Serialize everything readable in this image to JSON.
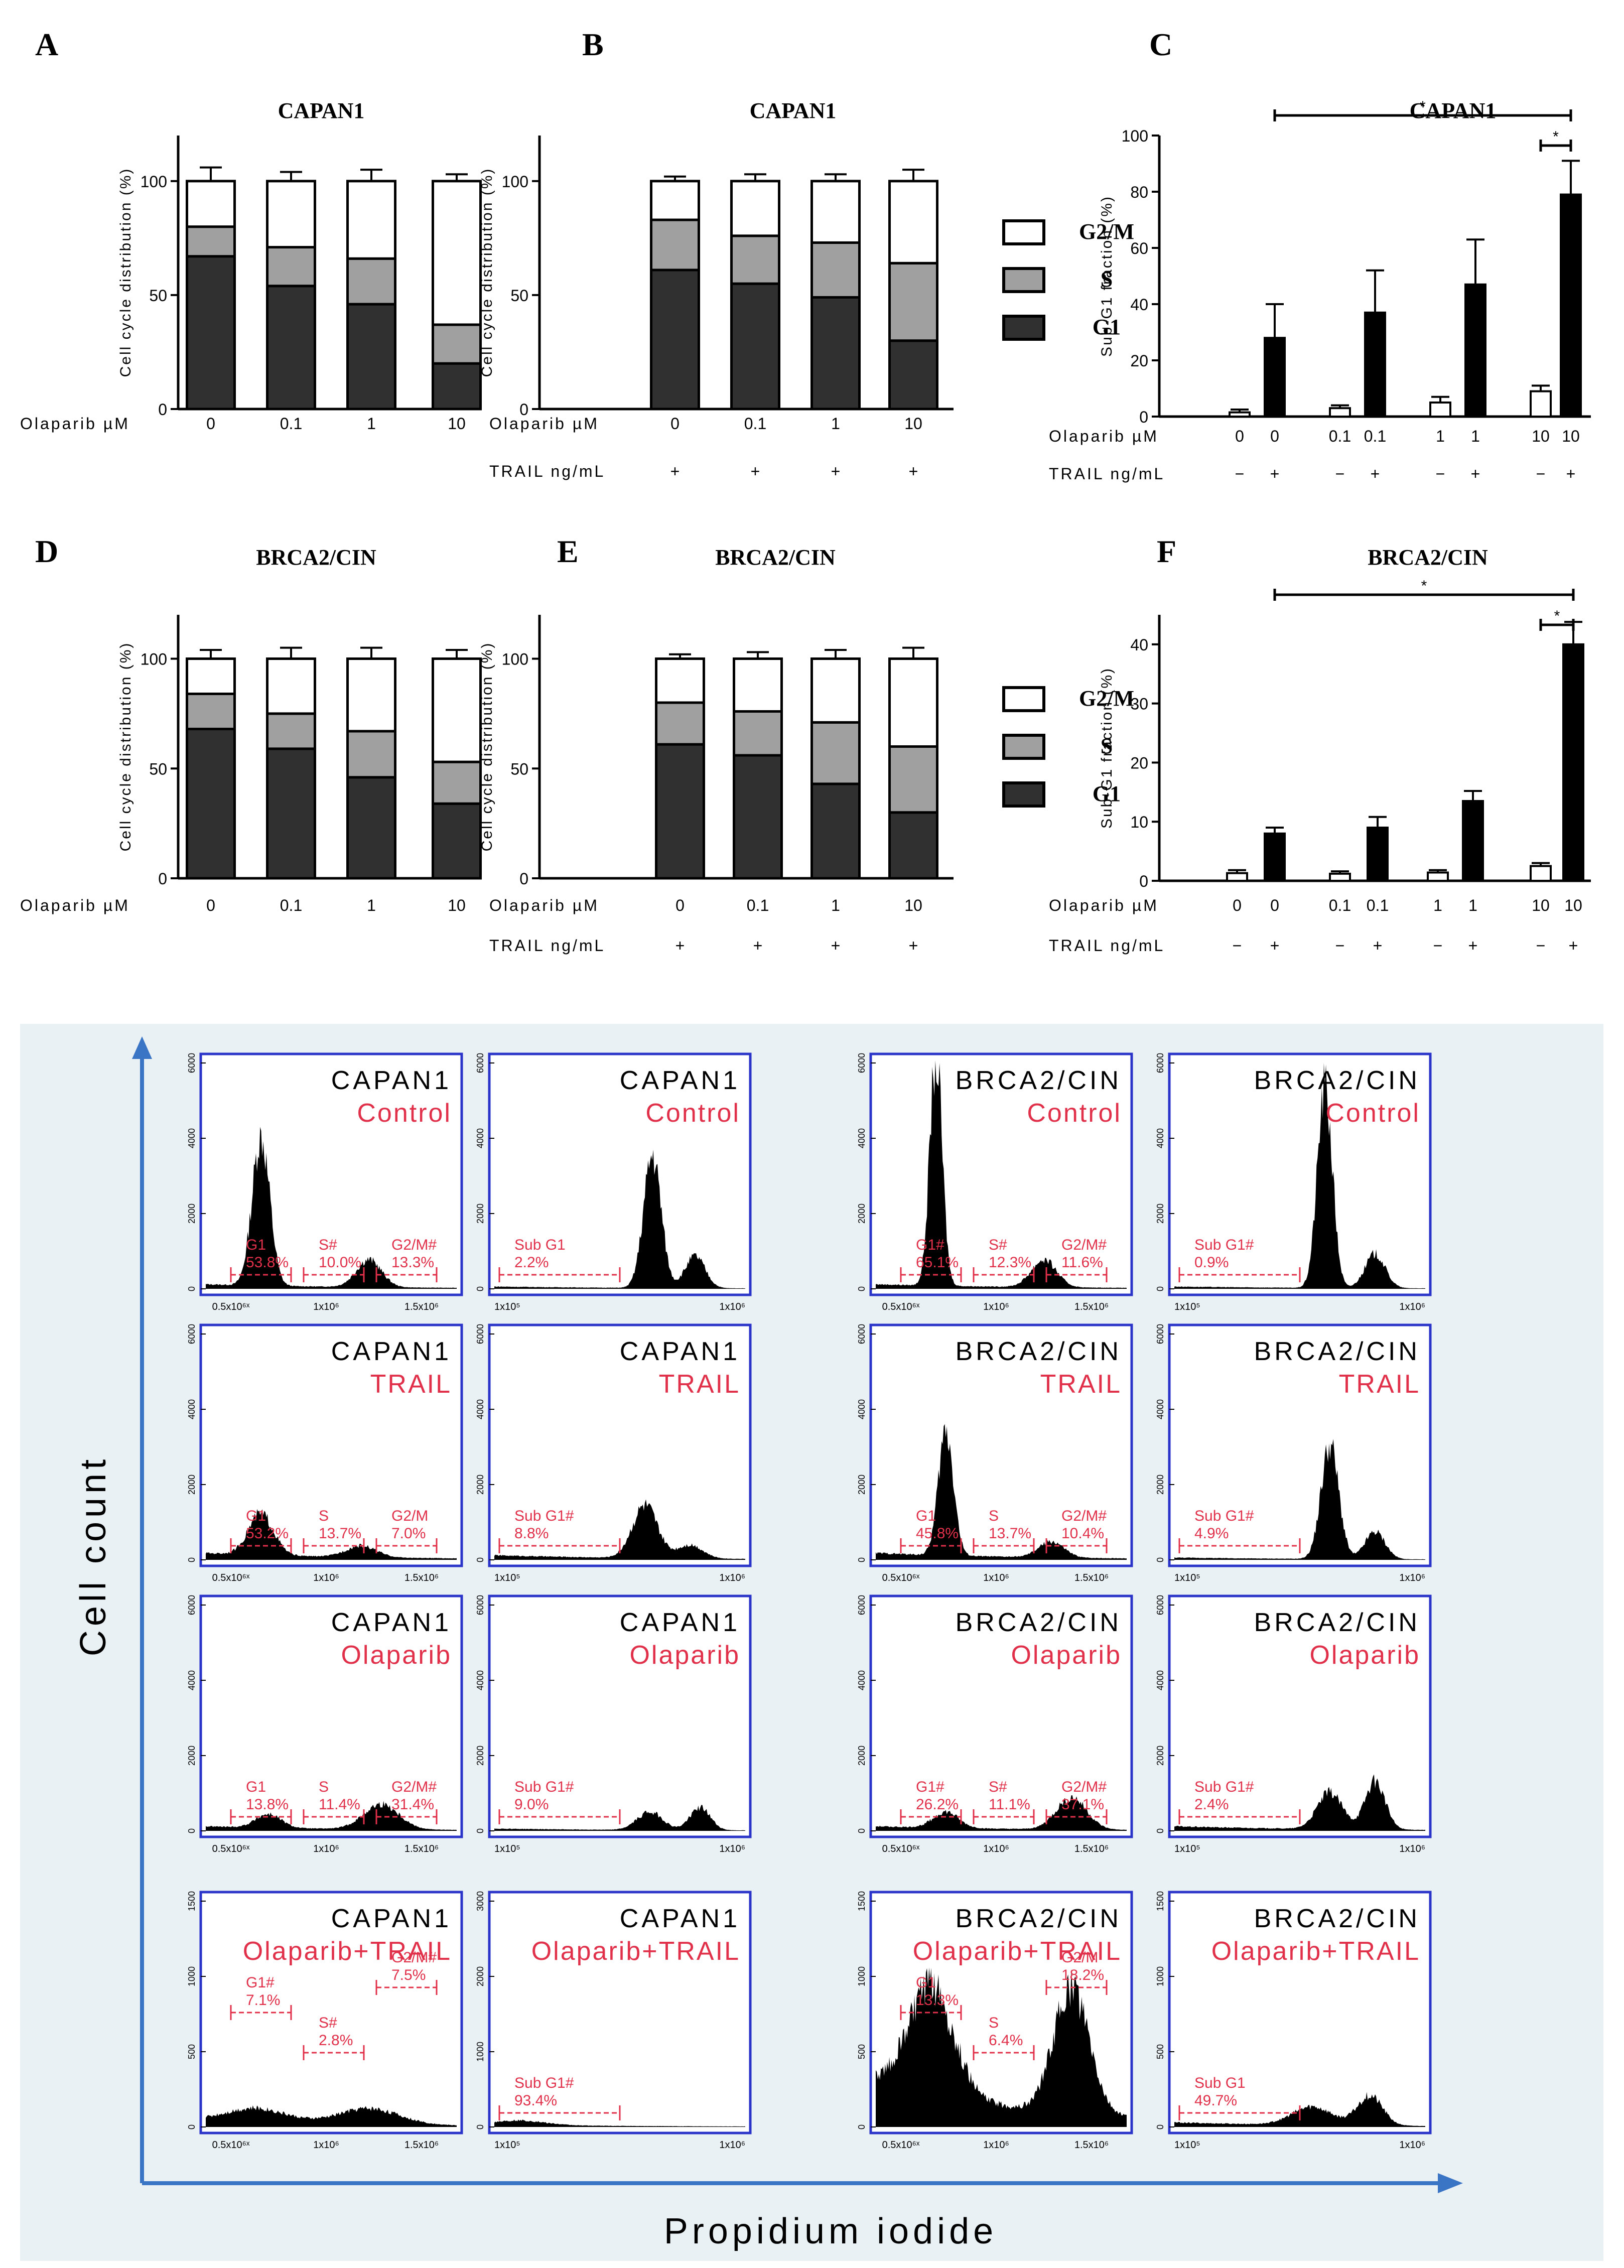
{
  "colors": {
    "g1": "#303030",
    "s": "#a0a0a0",
    "g2m": "#ffffff",
    "axis": "#000000",
    "frame": "#2b34c8",
    "gate": "#e0304a",
    "panel_bg": "#eaf1f4",
    "arrow": "#3a74c4"
  },
  "legend": [
    {
      "label": "G2/M",
      "color": "#ffffff"
    },
    {
      "label": "S",
      "color": "#a0a0a0"
    },
    {
      "label": "G1",
      "color": "#303030"
    }
  ],
  "chart_data": [
    {
      "id": "A",
      "type": "bar",
      "stacked": true,
      "title": "CAPAN1",
      "ylabel": "Cell cycle distribution (%)",
      "ylim": [
        0,
        100
      ],
      "yticks": [
        0,
        50,
        100
      ],
      "row_labels": [
        "Olaparib µM"
      ],
      "rows": [
        [
          "0",
          "0.1",
          "1",
          "10"
        ]
      ],
      "series": [
        {
          "name": "G1",
          "values": [
            67,
            54,
            46,
            20
          ]
        },
        {
          "name": "S",
          "values": [
            13,
            17,
            20,
            17
          ]
        },
        {
          "name": "G2/M",
          "values": [
            20,
            29,
            34,
            63
          ]
        }
      ],
      "errors": {
        "G1": [
          7,
          2,
          5,
          3
        ],
        "S": [
          2,
          4,
          3,
          1
        ],
        "G2/M": [
          6,
          4,
          5,
          3
        ]
      }
    },
    {
      "id": "B",
      "type": "bar",
      "stacked": true,
      "title": "CAPAN1",
      "ylabel": "Cell cycle distribution (%)",
      "ylim": [
        0,
        100
      ],
      "yticks": [
        0,
        50,
        100
      ],
      "row_labels": [
        "Olaparib µM",
        "TRAIL ng/mL"
      ],
      "rows": [
        [
          "0",
          "0.1",
          "1",
          "10"
        ],
        [
          "+",
          "+",
          "+",
          "+"
        ]
      ],
      "series": [
        {
          "name": "G1",
          "values": [
            61,
            55,
            49,
            30
          ]
        },
        {
          "name": "S",
          "values": [
            22,
            21,
            24,
            34
          ]
        },
        {
          "name": "G2/M",
          "values": [
            17,
            24,
            27,
            36
          ]
        }
      ],
      "errors": {
        "G1": [
          4,
          3,
          3,
          5
        ],
        "S": [
          4,
          3,
          4,
          8
        ],
        "G2/M": [
          2,
          3,
          3,
          5
        ]
      }
    },
    {
      "id": "C",
      "type": "bar",
      "title": "CAPAN1",
      "ylabel": "Sub-G1 fraction (%)",
      "ylim": [
        0,
        100
      ],
      "yticks": [
        0,
        20,
        40,
        60,
        80,
        100
      ],
      "row_labels": [
        "Olaparib µM",
        "TRAIL ng/mL"
      ],
      "rows": [
        [
          "0",
          "0",
          "0.1",
          "0.1",
          "1",
          "1",
          "10",
          "10"
        ],
        [
          "−",
          "+",
          "−",
          "+",
          "−",
          "+",
          "−",
          "+"
        ]
      ],
      "values": [
        1.5,
        28,
        3,
        37,
        5,
        47,
        9,
        79
      ],
      "errors": [
        1,
        12,
        1,
        15,
        2,
        16,
        2,
        12
      ],
      "significance": [
        {
          "from": 1,
          "to": 7,
          "label": "*"
        },
        {
          "from": 6,
          "to": 7,
          "label": "*"
        }
      ]
    },
    {
      "id": "D",
      "type": "bar",
      "stacked": true,
      "title": "BRCA2/CIN",
      "ylabel": "Cell cycle distribution (%)",
      "ylim": [
        0,
        100
      ],
      "yticks": [
        0,
        50,
        100
      ],
      "row_labels": [
        "Olaparib µM"
      ],
      "rows": [
        [
          "0",
          "0.1",
          "1",
          "10"
        ]
      ],
      "series": [
        {
          "name": "G1",
          "values": [
            68,
            59,
            46,
            34
          ]
        },
        {
          "name": "S",
          "values": [
            16,
            16,
            21,
            19
          ]
        },
        {
          "name": "G2/M",
          "values": [
            16,
            25,
            33,
            47
          ]
        }
      ],
      "errors": {
        "G1": [
          4,
          6,
          4,
          2
        ],
        "S": [
          1,
          2,
          2,
          3
        ],
        "G2/M": [
          4,
          5,
          5,
          4
        ]
      }
    },
    {
      "id": "E",
      "type": "bar",
      "stacked": true,
      "title": "BRCA2/CIN",
      "ylabel": "Cell cycle distribution (%)",
      "ylim": [
        0,
        100
      ],
      "yticks": [
        0,
        50,
        100
      ],
      "row_labels": [
        "Olaparib µM",
        "TRAIL ng/mL"
      ],
      "rows": [
        [
          "0",
          "0.1",
          "1",
          "10"
        ],
        [
          "+",
          "+",
          "+",
          "+"
        ]
      ],
      "series": [
        {
          "name": "G1",
          "values": [
            61,
            56,
            43,
            30
          ]
        },
        {
          "name": "S",
          "values": [
            19,
            20,
            28,
            30
          ]
        },
        {
          "name": "G2/M",
          "values": [
            20,
            24,
            29,
            40
          ]
        }
      ],
      "errors": {
        "G1": [
          1,
          3,
          3,
          3
        ],
        "S": [
          2,
          1,
          6,
          4
        ],
        "G2/M": [
          2,
          3,
          4,
          5
        ]
      }
    },
    {
      "id": "F",
      "type": "bar",
      "title": "BRCA2/CIN",
      "ylabel": "Sub-G1 fraction (%)",
      "ylim": [
        0,
        45
      ],
      "yticks": [
        0,
        10,
        20,
        30,
        40
      ],
      "row_labels": [
        "Olaparib µM",
        "TRAIL ng/mL"
      ],
      "rows": [
        [
          "0",
          "0",
          "0.1",
          "0.1",
          "1",
          "1",
          "10",
          "10"
        ],
        [
          "−",
          "+",
          "−",
          "+",
          "−",
          "+",
          "−",
          "+"
        ]
      ],
      "values": [
        1.3,
        8,
        1.2,
        9,
        1.4,
        13.5,
        2.5,
        40
      ],
      "errors": [
        0.5,
        1,
        0.4,
        1.8,
        0.4,
        1.7,
        0.5,
        3.8
      ],
      "significance": [
        {
          "from": 1,
          "to": 7,
          "label": "*"
        },
        {
          "from": 6,
          "to": 7,
          "label": "*"
        }
      ]
    },
    {
      "id": "G",
      "type": "histogram",
      "xlabel": "Propidium iodide",
      "ylabel": "Cell count",
      "panels": [
        {
          "cell": "CAPAN1",
          "cond": "Control",
          "ymax": 6000,
          "yticks": [
            "0",
            "2000",
            "4000",
            "6000"
          ],
          "xticks": [
            "0.5x10⁶ˣ",
            "1x10⁶",
            "1.5x10⁶"
          ],
          "peaks": [
            [
              0.22,
              0.65,
              0.035
            ],
            [
              0.65,
              0.12,
              0.05
            ]
          ],
          "base": 0.02,
          "gates": [
            {
              "label": "G1",
              "value": "53.8%"
            },
            {
              "label": "S#",
              "value": "10.0%"
            },
            {
              "label": "G2/M#",
              "value": "13.3%"
            }
          ]
        },
        {
          "cell": "CAPAN1",
          "cond": "Control",
          "ymax": 6000,
          "yticks": [
            "0",
            "2000",
            "4000",
            "6000"
          ],
          "xticks": [
            "1x10⁵",
            "1x10⁶"
          ],
          "peaks": [
            [
              0.63,
              0.58,
              0.035
            ],
            [
              0.8,
              0.14,
              0.04
            ]
          ],
          "base": 0.01,
          "gates": [
            {
              "label": "Sub G1",
              "value": "2.2%"
            }
          ]
        },
        {
          "cell": "BRCA2/CIN",
          "cond": "Control",
          "ymax": 6000,
          "yticks": [
            "0",
            "2000",
            "4000",
            "6000"
          ],
          "xticks": [
            "0.5x10⁶ˣ",
            "1x10⁶",
            "1.5x10⁶"
          ],
          "peaks": [
            [
              0.24,
              1.0,
              0.025
            ],
            [
              0.67,
              0.12,
              0.05
            ]
          ],
          "base": 0.02,
          "gates": [
            {
              "label": "G1#",
              "value": "65.1%"
            },
            {
              "label": "S#",
              "value": "12.3%"
            },
            {
              "label": "G2/M#",
              "value": "11.6%"
            }
          ]
        },
        {
          "cell": "BRCA2/CIN",
          "cond": "Control",
          "ymax": 6000,
          "yticks": [
            "0",
            "2000",
            "4000",
            "6000"
          ],
          "xticks": [
            "1x10⁵",
            "1x10⁶"
          ],
          "peaks": [
            [
              0.6,
              0.88,
              0.03
            ],
            [
              0.8,
              0.15,
              0.04
            ]
          ],
          "base": 0.01,
          "gates": [
            {
              "label": "Sub G1#",
              "value": "0.9%"
            }
          ]
        },
        {
          "cell": "CAPAN1",
          "cond": "TRAIL",
          "ymax": 6000,
          "yticks": [
            "0",
            "2000",
            "4000",
            "6000"
          ],
          "xticks": [
            "0.5x10⁶ˣ",
            "1x10⁶",
            "1.5x10⁶"
          ],
          "peaks": [
            [
              0.22,
              0.18,
              0.05
            ],
            [
              0.62,
              0.05,
              0.06
            ]
          ],
          "base": 0.03,
          "gates": [
            {
              "label": "G1",
              "value": "53.2%"
            },
            {
              "label": "S",
              "value": "13.7%"
            },
            {
              "label": "G2/M",
              "value": "7.0%"
            }
          ]
        },
        {
          "cell": "CAPAN1",
          "cond": "TRAIL",
          "ymax": 6000,
          "yticks": [
            "0",
            "2000",
            "4000",
            "6000"
          ],
          "xticks": [
            "1x10⁵",
            "1x10⁶"
          ],
          "peaks": [
            [
              0.6,
              0.23,
              0.05
            ],
            [
              0.78,
              0.06,
              0.05
            ]
          ],
          "base": 0.02,
          "gates": [
            {
              "label": "Sub G1#",
              "value": "8.8%"
            }
          ]
        },
        {
          "cell": "BRCA2/CIN",
          "cond": "TRAIL",
          "ymax": 6000,
          "yticks": [
            "0",
            "2000",
            "4000",
            "6000"
          ],
          "xticks": [
            "0.5x10⁶ˣ",
            "1x10⁶",
            "1.5x10⁶"
          ],
          "peaks": [
            [
              0.28,
              0.55,
              0.03
            ],
            [
              0.7,
              0.07,
              0.05
            ]
          ],
          "base": 0.03,
          "gates": [
            {
              "label": "G1",
              "value": "45.8%"
            },
            {
              "label": "S",
              "value": "13.7%"
            },
            {
              "label": "G2/M#",
              "value": "10.4%"
            }
          ]
        },
        {
          "cell": "BRCA2/CIN",
          "cond": "TRAIL",
          "ymax": 6000,
          "yticks": [
            "0",
            "2000",
            "4000",
            "6000"
          ],
          "xticks": [
            "1x10⁵",
            "1x10⁶"
          ],
          "peaks": [
            [
              0.62,
              0.5,
              0.035
            ],
            [
              0.8,
              0.12,
              0.04
            ]
          ],
          "base": 0.01,
          "gates": [
            {
              "label": "Sub G1#",
              "value": "4.9%"
            }
          ]
        },
        {
          "cell": "CAPAN1",
          "cond": "Olaparib",
          "ymax": 6000,
          "yticks": [
            "0",
            "2000",
            "4000",
            "6000"
          ],
          "xticks": [
            "0.5x10⁶ˣ",
            "1x10⁶",
            "1.5x10⁶"
          ],
          "peaks": [
            [
              0.25,
              0.06,
              0.05
            ],
            [
              0.7,
              0.11,
              0.07
            ]
          ],
          "base": 0.02,
          "gates": [
            {
              "label": "G1",
              "value": "13.8%"
            },
            {
              "label": "S",
              "value": "11.4%"
            },
            {
              "label": "G2/M#",
              "value": "31.4%"
            }
          ]
        },
        {
          "cell": "CAPAN1",
          "cond": "Olaparib",
          "ymax": 6000,
          "yticks": [
            "0",
            "2000",
            "4000",
            "6000"
          ],
          "xticks": [
            "1x10⁵",
            "1x10⁶"
          ],
          "peaks": [
            [
              0.62,
              0.08,
              0.05
            ],
            [
              0.82,
              0.1,
              0.04
            ]
          ],
          "base": 0.01,
          "gates": [
            {
              "label": "Sub G1#",
              "value": "9.0%"
            }
          ]
        },
        {
          "cell": "BRCA2/CIN",
          "cond": "Olaparib",
          "ymax": 6000,
          "yticks": [
            "0",
            "2000",
            "4000",
            "6000"
          ],
          "xticks": [
            "0.5x10⁶ˣ",
            "1x10⁶",
            "1.5x10⁶"
          ],
          "peaks": [
            [
              0.28,
              0.07,
              0.05
            ],
            [
              0.78,
              0.14,
              0.06
            ]
          ],
          "base": 0.02,
          "gates": [
            {
              "label": "G1#",
              "value": "26.2%"
            },
            {
              "label": "S#",
              "value": "11.1%"
            },
            {
              "label": "G2/M#",
              "value": "37.1%"
            }
          ]
        },
        {
          "cell": "BRCA2/CIN",
          "cond": "Olaparib",
          "ymax": 6000,
          "yticks": [
            "0",
            "2000",
            "4000",
            "6000"
          ],
          "xticks": [
            "1x10⁵",
            "1x10⁶"
          ],
          "peaks": [
            [
              0.62,
              0.16,
              0.05
            ],
            [
              0.8,
              0.21,
              0.04
            ]
          ],
          "base": 0.02,
          "gates": [
            {
              "label": "Sub G1#",
              "value": "2.4%"
            }
          ]
        },
        {
          "cell": "CAPAN1",
          "cond": "Olaparib+TRAIL",
          "ymax": 1500,
          "yticks": [
            "0",
            "500",
            "1000",
            "1500"
          ],
          "xticks": [
            "0.5x10⁶ˣ",
            "1x10⁶",
            "1.5x10⁶"
          ],
          "peaks": [
            [
              0.2,
              0.06,
              0.12
            ],
            [
              0.65,
              0.07,
              0.12
            ]
          ],
          "base": 0.03,
          "gates": [
            {
              "label": "G1#",
              "value": "7.1%"
            },
            {
              "label": "S#",
              "value": "2.8%"
            },
            {
              "label": "G2/M#",
              "value": "7.5%"
            }
          ]
        },
        {
          "cell": "CAPAN1",
          "cond": "Olaparib+TRAIL",
          "ymax": 3000,
          "yticks": [
            "0",
            "1000",
            "2000",
            "3000"
          ],
          "xticks": [
            "1x10⁵",
            "1x10⁶"
          ],
          "peaks": [
            [
              0.1,
              0.02,
              0.1
            ]
          ],
          "base": 0.01,
          "gates": [
            {
              "label": "Sub G1#",
              "value": "93.4%"
            }
          ]
        },
        {
          "cell": "BRCA2/CIN",
          "cond": "Olaparib+TRAIL",
          "ymax": 1500,
          "yticks": [
            "0",
            "500",
            "1000",
            "1500"
          ],
          "xticks": [
            "0.5x10⁶ˣ",
            "1x10⁶",
            "1.5x10⁶"
          ],
          "peaks": [
            [
              0.22,
              0.47,
              0.09
            ],
            [
              0.78,
              0.55,
              0.07
            ]
          ],
          "base": 0.2,
          "gates": [
            {
              "label": "G1",
              "value": "13.3%"
            },
            {
              "label": "S",
              "value": "6.4%"
            },
            {
              "label": "G2/M",
              "value": "18.2%"
            }
          ]
        },
        {
          "cell": "BRCA2/CIN",
          "cond": "Olaparib+TRAIL",
          "ymax": 1500,
          "yticks": [
            "0",
            "500",
            "1000",
            "1500"
          ],
          "xticks": [
            "1x10⁵",
            "1x10⁶"
          ],
          "peaks": [
            [
              0.55,
              0.08,
              0.08
            ],
            [
              0.78,
              0.13,
              0.05
            ]
          ],
          "base": 0.02,
          "gates": [
            {
              "label": "Sub G1",
              "value": "49.7%"
            }
          ]
        }
      ]
    }
  ]
}
